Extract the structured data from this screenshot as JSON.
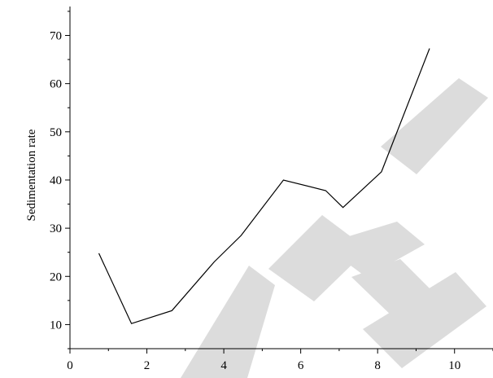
{
  "chart_data": {
    "type": "line",
    "title": "",
    "xlabel": "",
    "ylabel": "Sedimentation rate",
    "xlim": [
      0,
      11
    ],
    "ylim": [
      5,
      76
    ],
    "xticks": [
      0,
      2,
      4,
      6,
      8,
      10
    ],
    "yticks": [
      10,
      20,
      30,
      40,
      50,
      60,
      70
    ],
    "grid": false,
    "legend": "none",
    "series": [
      {
        "x": [
          0.75,
          1.6,
          2.65,
          3.75,
          4.45,
          5.55,
          6.65,
          7.1,
          8.1,
          9.35
        ],
        "y": [
          24.8,
          10.2,
          12.9,
          23.0,
          28.5,
          40.0,
          37.8,
          34.3,
          41.7,
          67.3
        ],
        "color": "#000000"
      }
    ],
    "watermark": {
      "text": "RETRACTED",
      "color": "#dcdcdc"
    }
  }
}
